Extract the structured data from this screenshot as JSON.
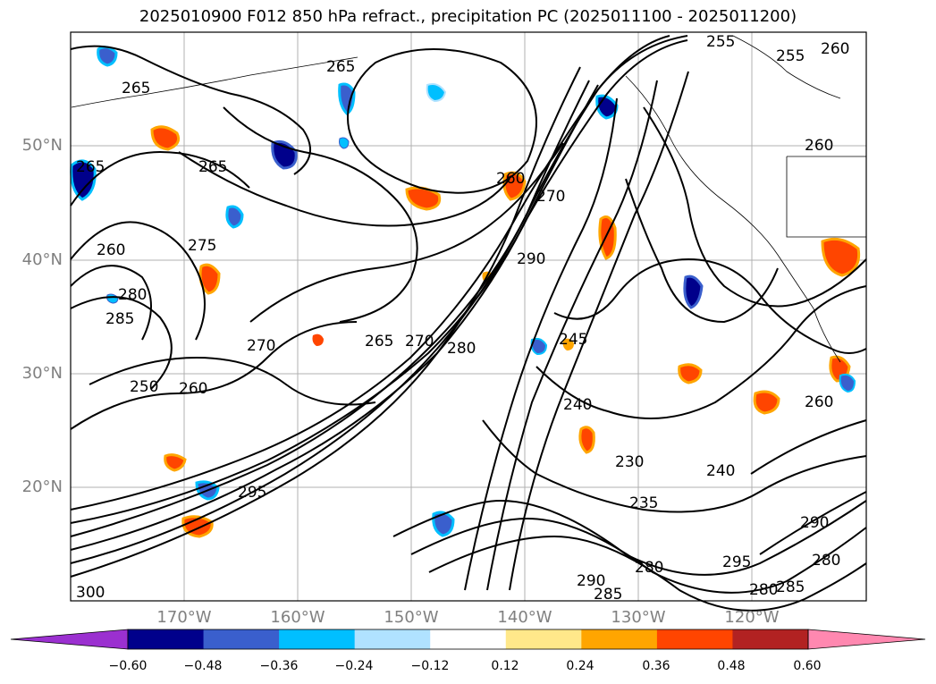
{
  "title": "2025010900 F012 850 hPa refract., precipitation PC (2025011100 - 2025011200)",
  "map": {
    "lat_labels": [
      "50°N",
      "40°N",
      "30°N",
      "20°N"
    ],
    "lon_labels": [
      "170°W",
      "160°W",
      "150°W",
      "140°W",
      "130°W",
      "120°W"
    ],
    "contour_labels": [
      "255",
      "255",
      "260",
      "265",
      "265",
      "265",
      "265",
      "260",
      "260",
      "270",
      "275",
      "260",
      "280",
      "285",
      "270",
      "265",
      "270",
      "280",
      "250",
      "260",
      "290",
      "245",
      "240",
      "230",
      "235",
      "240",
      "295",
      "290",
      "285",
      "280",
      "295",
      "285",
      "280",
      "260",
      "300",
      "290",
      "280"
    ]
  },
  "colorbar": {
    "colors": [
      "#9b30d0",
      "#00008b",
      "#3a5fcd",
      "#00bfff",
      "#b0e2ff",
      "#ffffff",
      "#ffe88a",
      "#ffa500",
      "#ff4500",
      "#b22222",
      "#ff88b0"
    ],
    "tick_labels": [
      "−0.60",
      "−0.48",
      "−0.36",
      "−0.24",
      "−0.12",
      "0.12",
      "0.24",
      "0.36",
      "0.48",
      "0.60"
    ]
  }
}
